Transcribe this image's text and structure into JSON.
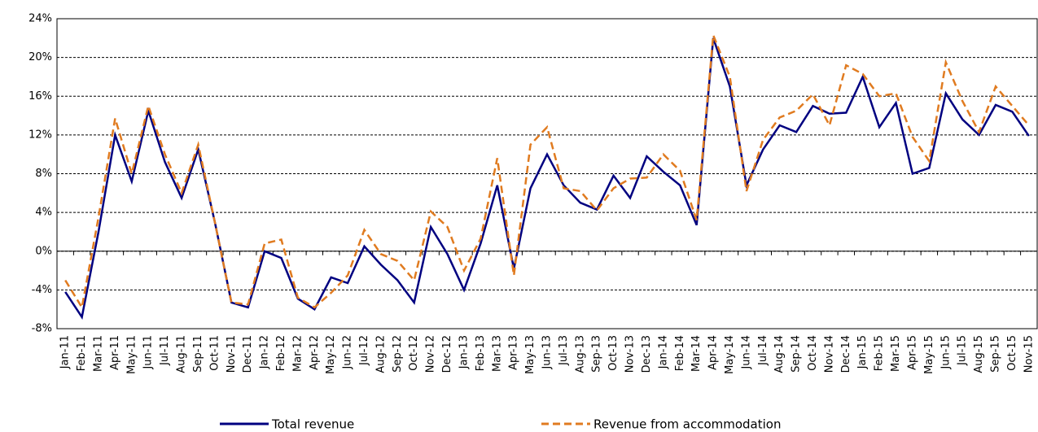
{
  "chart_data": {
    "type": "line",
    "categories": [
      "Jan-11",
      "Feb-11",
      "Mar-11",
      "Apr-11",
      "May-11",
      "Jun-11",
      "Jul-11",
      "Aug-11",
      "Sep-11",
      "Oct-11",
      "Nov-11",
      "Dec-11",
      "Jan-12",
      "Feb-12",
      "Mar-12",
      "Apr-12",
      "May-12",
      "Jun-12",
      "Jul-12",
      "Aug-12",
      "Sep-12",
      "Oct-12",
      "Nov-12",
      "Dec-12",
      "Jan-13",
      "Feb-13",
      "Mar-13",
      "Apr-13",
      "May-13",
      "Jun-13",
      "Jul-13",
      "Aug-13",
      "Sep-13",
      "Oct-13",
      "Nov-13",
      "Dec-13",
      "Jan-14",
      "Feb-14",
      "Mar-14",
      "Apr-14",
      "May-14",
      "Jun-14",
      "Jul-14",
      "Aug-14",
      "Sep-14",
      "Oct-14",
      "Nov-14",
      "Dec-14",
      "Jan-15",
      "Feb-15",
      "Mar-15",
      "Apr-15",
      "May-15",
      "Jun-15",
      "Jul-15",
      "Aug-15",
      "Sep-15",
      "Oct-15",
      "Nov-15"
    ],
    "series": [
      {
        "name": "Total revenue",
        "color": "#000080",
        "dash": false,
        "values": [
          -4.2,
          -6.8,
          2,
          12,
          7.2,
          14.5,
          9.2,
          5.5,
          10.5,
          3,
          -5.3,
          -5.8,
          0,
          -0.7,
          -4.9,
          -6,
          -2.7,
          -3.3,
          0.5,
          -1.4,
          -3,
          -5.3,
          2.5,
          -0.3,
          -4,
          0.8,
          6.8,
          -1.8,
          6.5,
          10,
          6.8,
          5,
          4.3,
          7.8,
          5.5,
          9.8,
          8.2,
          6.8,
          2.7,
          22,
          17,
          6.8,
          10.5,
          13,
          12.3,
          15,
          14.2,
          14.3,
          18,
          12.8,
          15.3,
          8,
          8.6,
          16.3,
          13.6,
          12,
          15.1,
          14.4,
          11.9
        ]
      },
      {
        "name": "Revenue from accommodation",
        "color": "#e07b20",
        "dash": true,
        "values": [
          -3,
          -5.8,
          3.5,
          13.7,
          8,
          15,
          10,
          6,
          11,
          3,
          -5.3,
          -5.5,
          0.8,
          1.2,
          -4.8,
          -5.8,
          -4.3,
          -2.5,
          2.2,
          -0.3,
          -1,
          -3,
          4.1,
          2.5,
          -2,
          1.3,
          9.6,
          -2.5,
          11,
          12.8,
          6.5,
          6.2,
          4.2,
          6.5,
          7.5,
          7.6,
          10,
          8.3,
          3.2,
          22.3,
          18,
          6.2,
          11.5,
          13.8,
          14.5,
          16.2,
          13,
          19.2,
          18.3,
          16,
          16.3,
          11.8,
          9.3,
          19.5,
          15.5,
          12.3,
          17,
          15,
          13
        ]
      }
    ],
    "ylim": [
      -8,
      24
    ],
    "yticks": [
      {
        "value": -8,
        "label": "-8%"
      },
      {
        "value": -4,
        "label": "-4%"
      },
      {
        "value": 0,
        "label": "0%"
      },
      {
        "value": 4,
        "label": "4%"
      },
      {
        "value": 8,
        "label": "8%"
      },
      {
        "value": 12,
        "label": "12%"
      },
      {
        "value": 16,
        "label": "16%"
      },
      {
        "value": 20,
        "label": "20%"
      },
      {
        "value": 24,
        "label": "24%"
      }
    ],
    "grid": true
  }
}
